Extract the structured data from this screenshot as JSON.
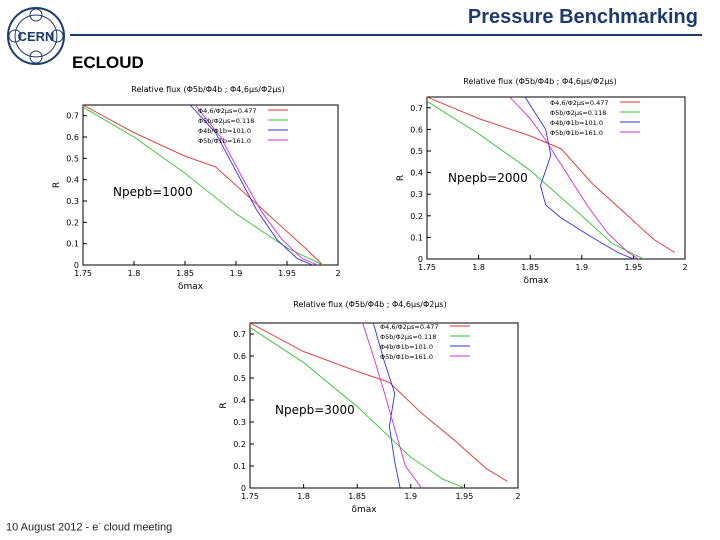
{
  "slide": {
    "title": "Pressure Benchmarking",
    "section": "ECLOUD",
    "logo_text": "CERN",
    "footer_date": "10 August 2012",
    "footer_sep": "-",
    "footer_e": "e",
    "footer_sup": "-",
    "footer_tail": "cloud meeting"
  },
  "colors": {
    "title": "#1f3a6e",
    "red": "#e03030",
    "green": "#30c030",
    "blue": "#3030e0",
    "magenta": "#d030d0"
  },
  "chart_data": [
    {
      "type": "line",
      "annotation": "Npepb=1000",
      "title": "Relative flux (Φ5b/Φ4b ; Φ4,6μs/Φ2μs)",
      "xlabel": "δmax",
      "ylabel": "R",
      "xlim": [
        1.75,
        2.0
      ],
      "ylim": [
        0,
        0.75
      ],
      "xticks": [
        "1.75",
        "1.8",
        "1.85",
        "1.9",
        "1.95",
        "2"
      ],
      "yticks": [
        "0",
        "0.1",
        "0.2",
        "0.3",
        "0.4",
        "0.5",
        "0.6",
        "0.7"
      ],
      "series": [
        {
          "name": "Φ4,6/Φ2μs=0.477",
          "color": "#e03030",
          "x": [
            1.75,
            1.8,
            1.85,
            1.88,
            1.91,
            1.94,
            1.97,
            1.985
          ],
          "y": [
            0.75,
            0.62,
            0.51,
            0.46,
            0.33,
            0.2,
            0.07,
            0.0
          ]
        },
        {
          "name": "Φ5b/Φ2μs=0.118",
          "color": "#30c030",
          "x": [
            1.75,
            1.8,
            1.85,
            1.9,
            1.95,
            1.985
          ],
          "y": [
            0.74,
            0.6,
            0.43,
            0.24,
            0.08,
            0.0
          ]
        },
        {
          "name": "Φ4b/Φ1b=101.0",
          "color": "#3030e0",
          "x": [
            1.855,
            1.88,
            1.9,
            1.92,
            1.94,
            1.96,
            1.975
          ],
          "y": [
            0.75,
            0.62,
            0.44,
            0.26,
            0.12,
            0.03,
            0.0
          ]
        },
        {
          "name": "Φ5b/Φ1b=161.0",
          "color": "#d030d0",
          "x": [
            1.86,
            1.885,
            1.905,
            1.925,
            1.945,
            1.965,
            1.98
          ],
          "y": [
            0.75,
            0.6,
            0.42,
            0.25,
            0.12,
            0.03,
            0.0
          ]
        }
      ]
    },
    {
      "type": "line",
      "annotation": "Npepb=2000",
      "title": "Relative flux (Φ5b/Φ4b ; Φ4,6μs/Φ2μs)",
      "xlabel": "δmax",
      "ylabel": "R",
      "xlim": [
        1.75,
        2.0
      ],
      "ylim": [
        0,
        0.75
      ],
      "xticks": [
        "1.75",
        "1.8",
        "1.85",
        "1.9",
        "1.95",
        "2"
      ],
      "yticks": [
        "0",
        "0.1",
        "0.2",
        "0.3",
        "0.4",
        "0.5",
        "0.6",
        "0.7"
      ],
      "series": [
        {
          "name": "Φ4,6/Φ2μs=0.477",
          "color": "#e03030",
          "x": [
            1.75,
            1.8,
            1.85,
            1.88,
            1.91,
            1.94,
            1.97,
            1.99
          ],
          "y": [
            0.75,
            0.65,
            0.57,
            0.51,
            0.35,
            0.22,
            0.09,
            0.03
          ]
        },
        {
          "name": "Φ5b/Φ2μs=0.118",
          "color": "#30c030",
          "x": [
            1.75,
            1.8,
            1.85,
            1.9,
            1.93,
            1.96
          ],
          "y": [
            0.73,
            0.58,
            0.41,
            0.2,
            0.07,
            0.0
          ]
        },
        {
          "name": "Φ4b/Φ1b=101.0",
          "color": "#3030e0",
          "x": [
            1.845,
            1.865,
            1.87,
            1.86,
            1.865,
            1.88,
            1.91,
            1.935,
            1.95
          ],
          "y": [
            0.75,
            0.6,
            0.48,
            0.34,
            0.25,
            0.19,
            0.1,
            0.03,
            0.0
          ]
        },
        {
          "name": "Φ5b/Φ1b=161.0",
          "color": "#d030d0",
          "x": [
            1.83,
            1.85,
            1.865,
            1.885,
            1.905,
            1.925,
            1.945,
            1.955
          ],
          "y": [
            0.75,
            0.65,
            0.55,
            0.4,
            0.25,
            0.12,
            0.03,
            0.0
          ]
        }
      ]
    },
    {
      "type": "line",
      "annotation": "Npepb=3000",
      "title": "Relative flux (Φ5b/Φ4b ; Φ4,6μs/Φ2μs)",
      "xlabel": "δmax",
      "ylabel": "R",
      "xlim": [
        1.75,
        2.0
      ],
      "ylim": [
        0,
        0.75
      ],
      "xticks": [
        "1.75",
        "1.8",
        "1.85",
        "1.9",
        "1.95",
        "2"
      ],
      "yticks": [
        "0",
        "0.1",
        "0.2",
        "0.3",
        "0.4",
        "0.5",
        "0.6",
        "0.7"
      ],
      "series": [
        {
          "name": "Φ4,6/Φ2μs=0.477",
          "color": "#e03030",
          "x": [
            1.75,
            1.8,
            1.85,
            1.88,
            1.91,
            1.94,
            1.97,
            1.99
          ],
          "y": [
            0.75,
            0.62,
            0.53,
            0.48,
            0.34,
            0.22,
            0.09,
            0.03
          ]
        },
        {
          "name": "Φ5b/Φ2μs=0.118",
          "color": "#30c030",
          "x": [
            1.75,
            1.8,
            1.85,
            1.9,
            1.93,
            1.95
          ],
          "y": [
            0.73,
            0.57,
            0.37,
            0.14,
            0.04,
            0.0
          ]
        },
        {
          "name": "Φ4b/Φ1b=101.0",
          "color": "#3030e0",
          "x": [
            1.865,
            1.875,
            1.885,
            1.88,
            1.885,
            1.89
          ],
          "y": [
            0.75,
            0.58,
            0.43,
            0.28,
            0.12,
            0.0
          ]
        },
        {
          "name": "Φ5b/Φ1b=161.0",
          "color": "#d030d0",
          "x": [
            1.855,
            1.865,
            1.875,
            1.885,
            1.895,
            1.91
          ],
          "y": [
            0.75,
            0.6,
            0.44,
            0.27,
            0.1,
            0.0
          ]
        }
      ]
    }
  ]
}
